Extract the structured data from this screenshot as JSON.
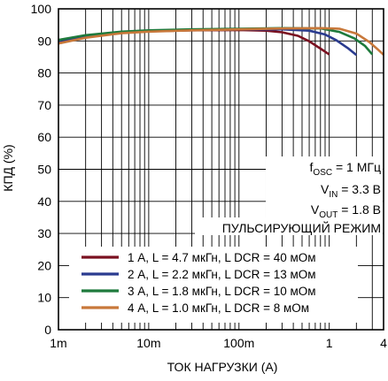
{
  "chart_data": {
    "type": "line",
    "xlabel": "ТОК НАГРУЗКИ (А)",
    "ylabel": "КПД (%)",
    "x_scale": "log",
    "xlim": [
      0.001,
      4
    ],
    "ylim": [
      0,
      100
    ],
    "x_ticks": [
      {
        "value": 0.001,
        "label": "1m"
      },
      {
        "value": 0.01,
        "label": "10m"
      },
      {
        "value": 0.1,
        "label": "100m"
      },
      {
        "value": 1,
        "label": "1"
      },
      {
        "value": 4,
        "label": "4"
      }
    ],
    "y_ticks": [
      0,
      10,
      20,
      30,
      40,
      50,
      60,
      70,
      80,
      90,
      100
    ],
    "grid": true,
    "annotations": {
      "fosc": {
        "main": "f",
        "sub": "OSC",
        "rest": " = 1 МГц"
      },
      "vin": {
        "main": "V",
        "sub": "IN",
        "rest": " = 3.3 В"
      },
      "vout": {
        "main": "V",
        "sub": "OUT",
        "rest": " = 1.8 В"
      },
      "mode": "ПУЛЬСИРУЮЩИЙ РЕЖИМ"
    },
    "legend_position": "bottom-center",
    "series": [
      {
        "name": "1 А, L = 4.7 мкГн, L DCR = 40 мОм",
        "color": "#7a1020",
        "points": [
          [
            0.001,
            89.5
          ],
          [
            0.002,
            91.3
          ],
          [
            0.005,
            92.6
          ],
          [
            0.01,
            93.0
          ],
          [
            0.03,
            93.3
          ],
          [
            0.1,
            93.4
          ],
          [
            0.2,
            93.2
          ],
          [
            0.3,
            92.7
          ],
          [
            0.45,
            91.6
          ],
          [
            0.6,
            89.9
          ],
          [
            0.8,
            87.6
          ],
          [
            1.0,
            85.8
          ]
        ]
      },
      {
        "name": "2 А, L = 2.2 мкГн, L DCR = 13 мОм",
        "color": "#2a3b8f",
        "points": [
          [
            0.001,
            90.0
          ],
          [
            0.002,
            91.6
          ],
          [
            0.005,
            92.7
          ],
          [
            0.01,
            93.1
          ],
          [
            0.03,
            93.4
          ],
          [
            0.1,
            93.6
          ],
          [
            0.3,
            93.6
          ],
          [
            0.6,
            93.2
          ],
          [
            0.9,
            92.0
          ],
          [
            1.2,
            90.2
          ],
          [
            1.6,
            87.8
          ],
          [
            2.0,
            85.6
          ]
        ]
      },
      {
        "name": "3 А, L = 1.8 мкГн, L DCR = 10 мОм",
        "color": "#1e7a3c",
        "points": [
          [
            0.001,
            90.3
          ],
          [
            0.002,
            91.8
          ],
          [
            0.005,
            92.9
          ],
          [
            0.01,
            93.3
          ],
          [
            0.03,
            93.6
          ],
          [
            0.1,
            93.8
          ],
          [
            0.3,
            94.0
          ],
          [
            0.8,
            93.9
          ],
          [
            1.3,
            92.8
          ],
          [
            1.9,
            90.8
          ],
          [
            2.5,
            88.4
          ],
          [
            3.0,
            85.8
          ]
        ]
      },
      {
        "name": "4 А, L = 1.0 мкГн, L DCR = 8 мОм",
        "color": "#c8783a",
        "points": [
          [
            0.001,
            89.2
          ],
          [
            0.002,
            91.0
          ],
          [
            0.005,
            92.4
          ],
          [
            0.01,
            92.9
          ],
          [
            0.03,
            93.3
          ],
          [
            0.1,
            93.6
          ],
          [
            0.3,
            93.9
          ],
          [
            0.8,
            94.0
          ],
          [
            1.3,
            93.8
          ],
          [
            2.0,
            92.3
          ],
          [
            2.8,
            89.6
          ],
          [
            3.5,
            87.2
          ],
          [
            4.0,
            85.7
          ]
        ]
      }
    ]
  }
}
